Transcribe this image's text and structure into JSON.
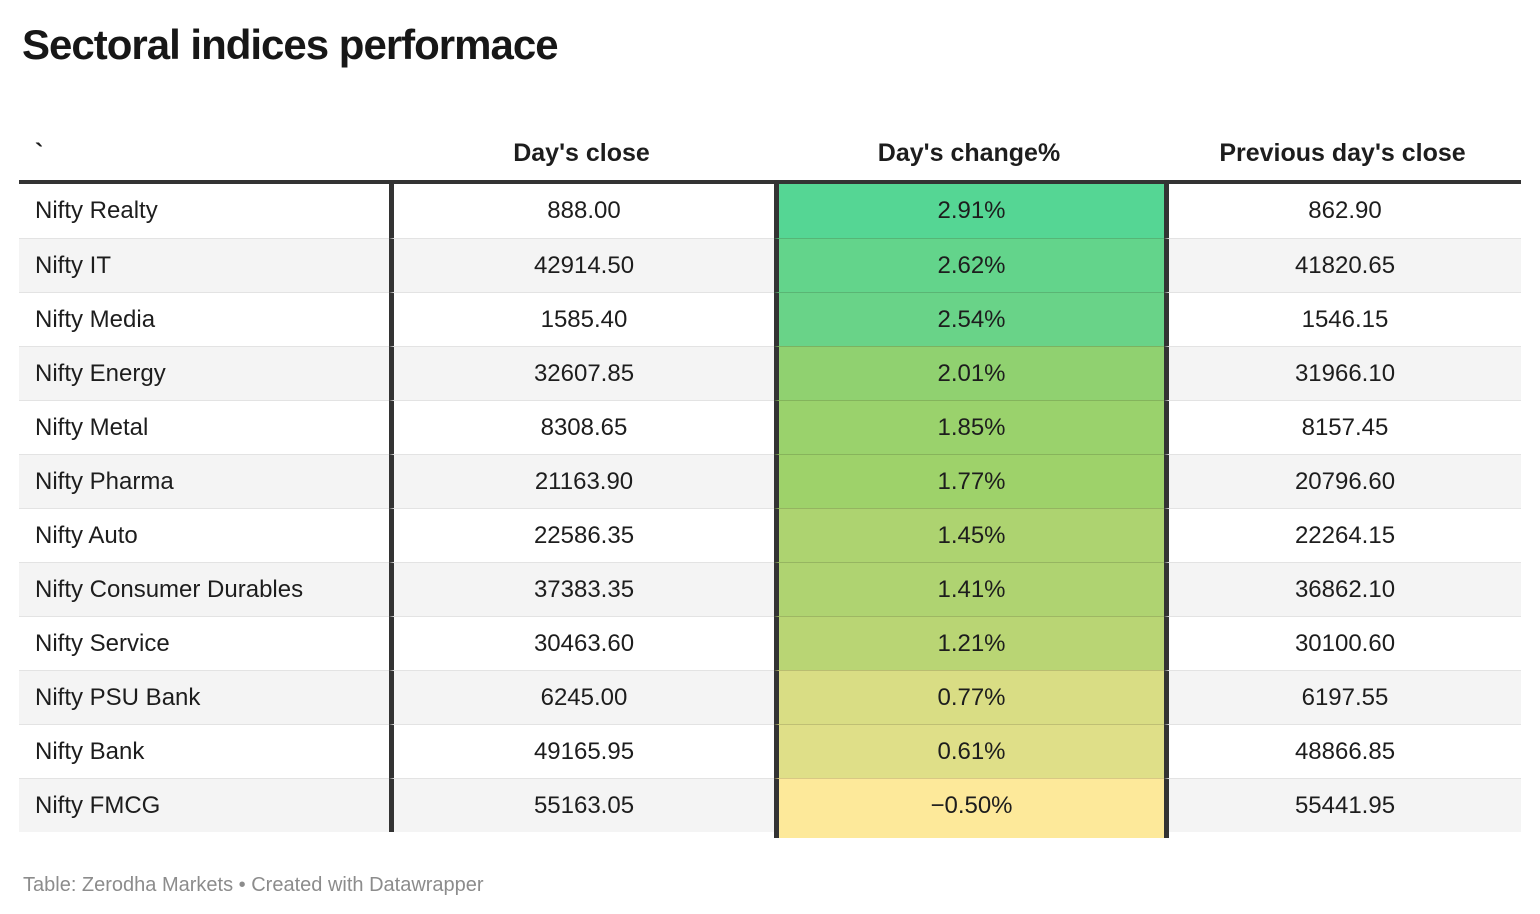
{
  "title": "Sectoral indices performace",
  "table": {
    "columns": [
      {
        "label": "`"
      },
      {
        "label": "Day's close"
      },
      {
        "label": "Day's change%"
      },
      {
        "label": "Previous day's close"
      }
    ],
    "rows": [
      {
        "name": "Nifty Realty",
        "close": "888.00",
        "change": "2.91%",
        "prev_close": "862.90",
        "change_color": "#55d694"
      },
      {
        "name": "Nifty IT",
        "close": "42914.50",
        "change": "2.62%",
        "prev_close": "41820.65",
        "change_color": "#63d48b"
      },
      {
        "name": "Nifty Media",
        "close": "1585.40",
        "change": "2.54%",
        "prev_close": "1546.15",
        "change_color": "#69d388"
      },
      {
        "name": "Nifty Energy",
        "close": "32607.85",
        "change": "2.01%",
        "prev_close": "31966.10",
        "change_color": "#90d170"
      },
      {
        "name": "Nifty Metal",
        "close": "8308.65",
        "change": "1.85%",
        "prev_close": "8157.45",
        "change_color": "#9ad26c"
      },
      {
        "name": "Nifty Pharma",
        "close": "21163.90",
        "change": "1.77%",
        "prev_close": "20796.60",
        "change_color": "#9ed26a"
      },
      {
        "name": "Nifty Auto",
        "close": "22586.35",
        "change": "1.45%",
        "prev_close": "22264.15",
        "change_color": "#add370"
      },
      {
        "name": "Nifty Consumer Durables",
        "close": "37383.35",
        "change": "1.41%",
        "prev_close": "36862.10",
        "change_color": "#afd371"
      },
      {
        "name": "Nifty Service",
        "close": "30463.60",
        "change": "1.21%",
        "prev_close": "30100.60",
        "change_color": "#b9d574"
      },
      {
        "name": "Nifty PSU Bank",
        "close": "6245.00",
        "change": "0.77%",
        "prev_close": "6197.55",
        "change_color": "#d9dd84"
      },
      {
        "name": "Nifty Bank",
        "close": "49165.95",
        "change": "0.61%",
        "prev_close": "48866.85",
        "change_color": "#dfdf88"
      },
      {
        "name": "Nifty FMCG",
        "close": "55163.05",
        "change": "−0.50%",
        "prev_close": "55441.95",
        "change_color": "#fde99a"
      }
    ]
  },
  "footer": {
    "source": "Table: Zerodha Markets",
    "separator": " • ",
    "attribution": "Created with Datawrapper"
  },
  "colors": {
    "border_dark": "#333333",
    "row_alt_bg": "#f4f4f4",
    "row_divider": "#e3e3e3",
    "footer_text": "#8c8c8c",
    "heatmap_max_green": "#55d694",
    "heatmap_min_yellow": "#fde99a"
  }
}
